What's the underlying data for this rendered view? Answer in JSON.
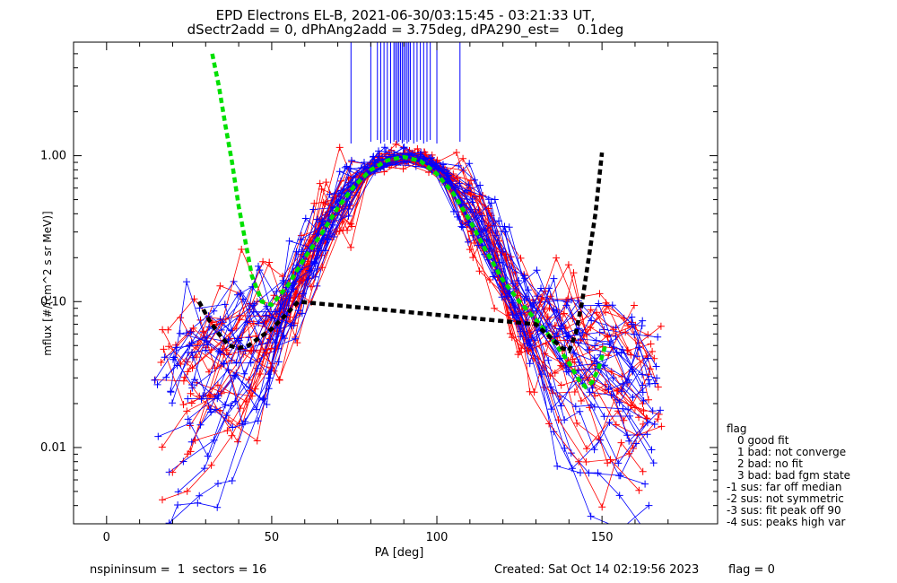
{
  "chart_data": {
    "type": "line",
    "title": "EPD Electrons EL-B, 2021-06-30/03:15:45 - 03:21:33 UT,",
    "subtitle": "dSectr2add = 0, dPhAng2add = 3.75deg, dPA290_est=    0.1deg",
    "xlabel": "PA [deg]",
    "ylabel": "mflux [#/(cm^2 s sr MeV)]",
    "xlim": [
      -10,
      185
    ],
    "ylim": [
      0.003,
      6.0
    ],
    "yscale": "log",
    "x_ticks": [
      {
        "v": 0,
        "label": "0"
      },
      {
        "v": 50,
        "label": "50"
      },
      {
        "v": 100,
        "label": "100"
      },
      {
        "v": 150,
        "label": "150"
      }
    ],
    "y_ticks": [
      {
        "v": 0.01,
        "label": "0.01"
      },
      {
        "v": 0.1,
        "label": "0.10"
      },
      {
        "v": 1.0,
        "label": "1.00"
      }
    ],
    "grid": false,
    "colors": {
      "red": "#ff0000",
      "blue": "#0000ff",
      "green": "#00e000",
      "black": "#000000"
    },
    "fits": [
      {
        "color": "#00e000",
        "style": "dashed",
        "x": [
          32,
          34,
          36,
          38,
          40,
          42,
          44,
          47,
          50,
          55,
          60,
          65,
          70,
          75,
          80,
          85,
          90,
          95,
          100,
          105,
          110,
          115,
          120,
          125,
          130,
          135,
          140,
          143,
          145,
          147,
          149,
          151
        ],
        "y": [
          5.0,
          3.0,
          1.6,
          0.9,
          0.45,
          0.26,
          0.15,
          0.1,
          0.095,
          0.13,
          0.2,
          0.29,
          0.44,
          0.62,
          0.8,
          0.93,
          0.98,
          0.92,
          0.75,
          0.55,
          0.36,
          0.22,
          0.14,
          0.1,
          0.075,
          0.055,
          0.038,
          0.029,
          0.026,
          0.028,
          0.035,
          0.05
        ]
      },
      {
        "color": "#000000",
        "style": "dashed",
        "x": [
          28,
          31,
          34,
          37,
          40,
          43,
          46,
          50,
          54,
          58,
          130,
          135,
          138,
          140,
          142,
          144,
          146,
          148,
          150
        ],
        "y": [
          0.1,
          0.075,
          0.06,
          0.05,
          0.048,
          0.05,
          0.056,
          0.065,
          0.08,
          0.1,
          0.07,
          0.055,
          0.048,
          0.046,
          0.06,
          0.1,
          0.2,
          0.4,
          1.05
        ]
      }
    ],
    "peak_markers": {
      "color": "#0000ff",
      "x": [
        74,
        80,
        82,
        83,
        84,
        85,
        86,
        87,
        87.5,
        88,
        88.5,
        89,
        89.5,
        90,
        90.5,
        91,
        91.5,
        92,
        93,
        94,
        95,
        96,
        97,
        98,
        100,
        107
      ]
    },
    "series_info": {
      "red_count": 24,
      "blue_count": 26
    },
    "legend": {
      "title": "flag",
      "placement": "right",
      "items": [
        "0 good fit",
        "1 bad: not converge",
        "2 bad: no fit",
        "3 bad: bad fgm state",
        "-1 sus: far off median",
        "-2 sus: not symmetric",
        "-3 sus: fit peak off 90",
        "-4 sus: peaks high var"
      ]
    }
  },
  "footer": {
    "left": "nspininsum =  1  sectors = 16",
    "created": "Created: Sat Oct 14 02:19:56 2023",
    "flag": "flag = 0"
  }
}
